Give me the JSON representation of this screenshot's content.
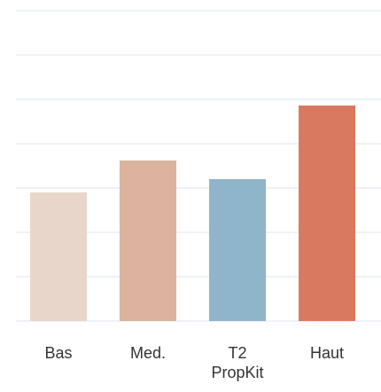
{
  "chart_data": {
    "type": "bar",
    "title": "",
    "xlabel": "",
    "ylabel": "",
    "categories": [
      "Bas",
      "Med.",
      "T2\nPropKit",
      "Haut"
    ],
    "values": [
      1.45,
      1.81,
      1.6,
      2.43
    ],
    "colors": [
      "#e8d6ca",
      "#dbb39f",
      "#8fb5ca",
      "#d97a60"
    ],
    "ylim": [
      0,
      3.5
    ],
    "gridlines": [
      0,
      0.5,
      1.0,
      1.5,
      2.0,
      2.5,
      3.0,
      3.5
    ],
    "grid": true,
    "gridColor": "#e3ebf2",
    "legend": "none"
  }
}
